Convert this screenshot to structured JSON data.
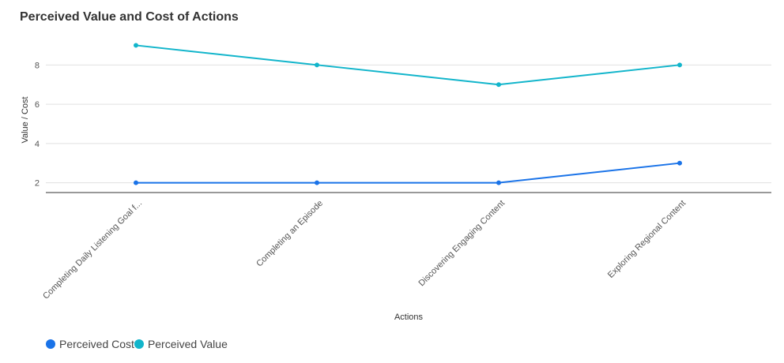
{
  "chart_data": {
    "type": "line",
    "title": "Perceived Value and Cost of Actions",
    "xlabel": "Actions",
    "ylabel": "Value / Cost",
    "categories": [
      "Completing Daily Listening Goal f...",
      "Completing an Episode",
      "Discovering Engaging Content",
      "Exploring Regional Content"
    ],
    "y_ticks": [
      2,
      4,
      6,
      8
    ],
    "ylim": [
      1.5,
      9.5
    ],
    "grid": true,
    "legend_position": "bottom-left",
    "series": [
      {
        "name": "Perceived Cost",
        "color": "#1a73e8",
        "values": [
          2,
          2,
          2,
          3
        ]
      },
      {
        "name": "Perceived Value",
        "color": "#12b5cb",
        "values": [
          9,
          8,
          7,
          8
        ]
      }
    ]
  }
}
